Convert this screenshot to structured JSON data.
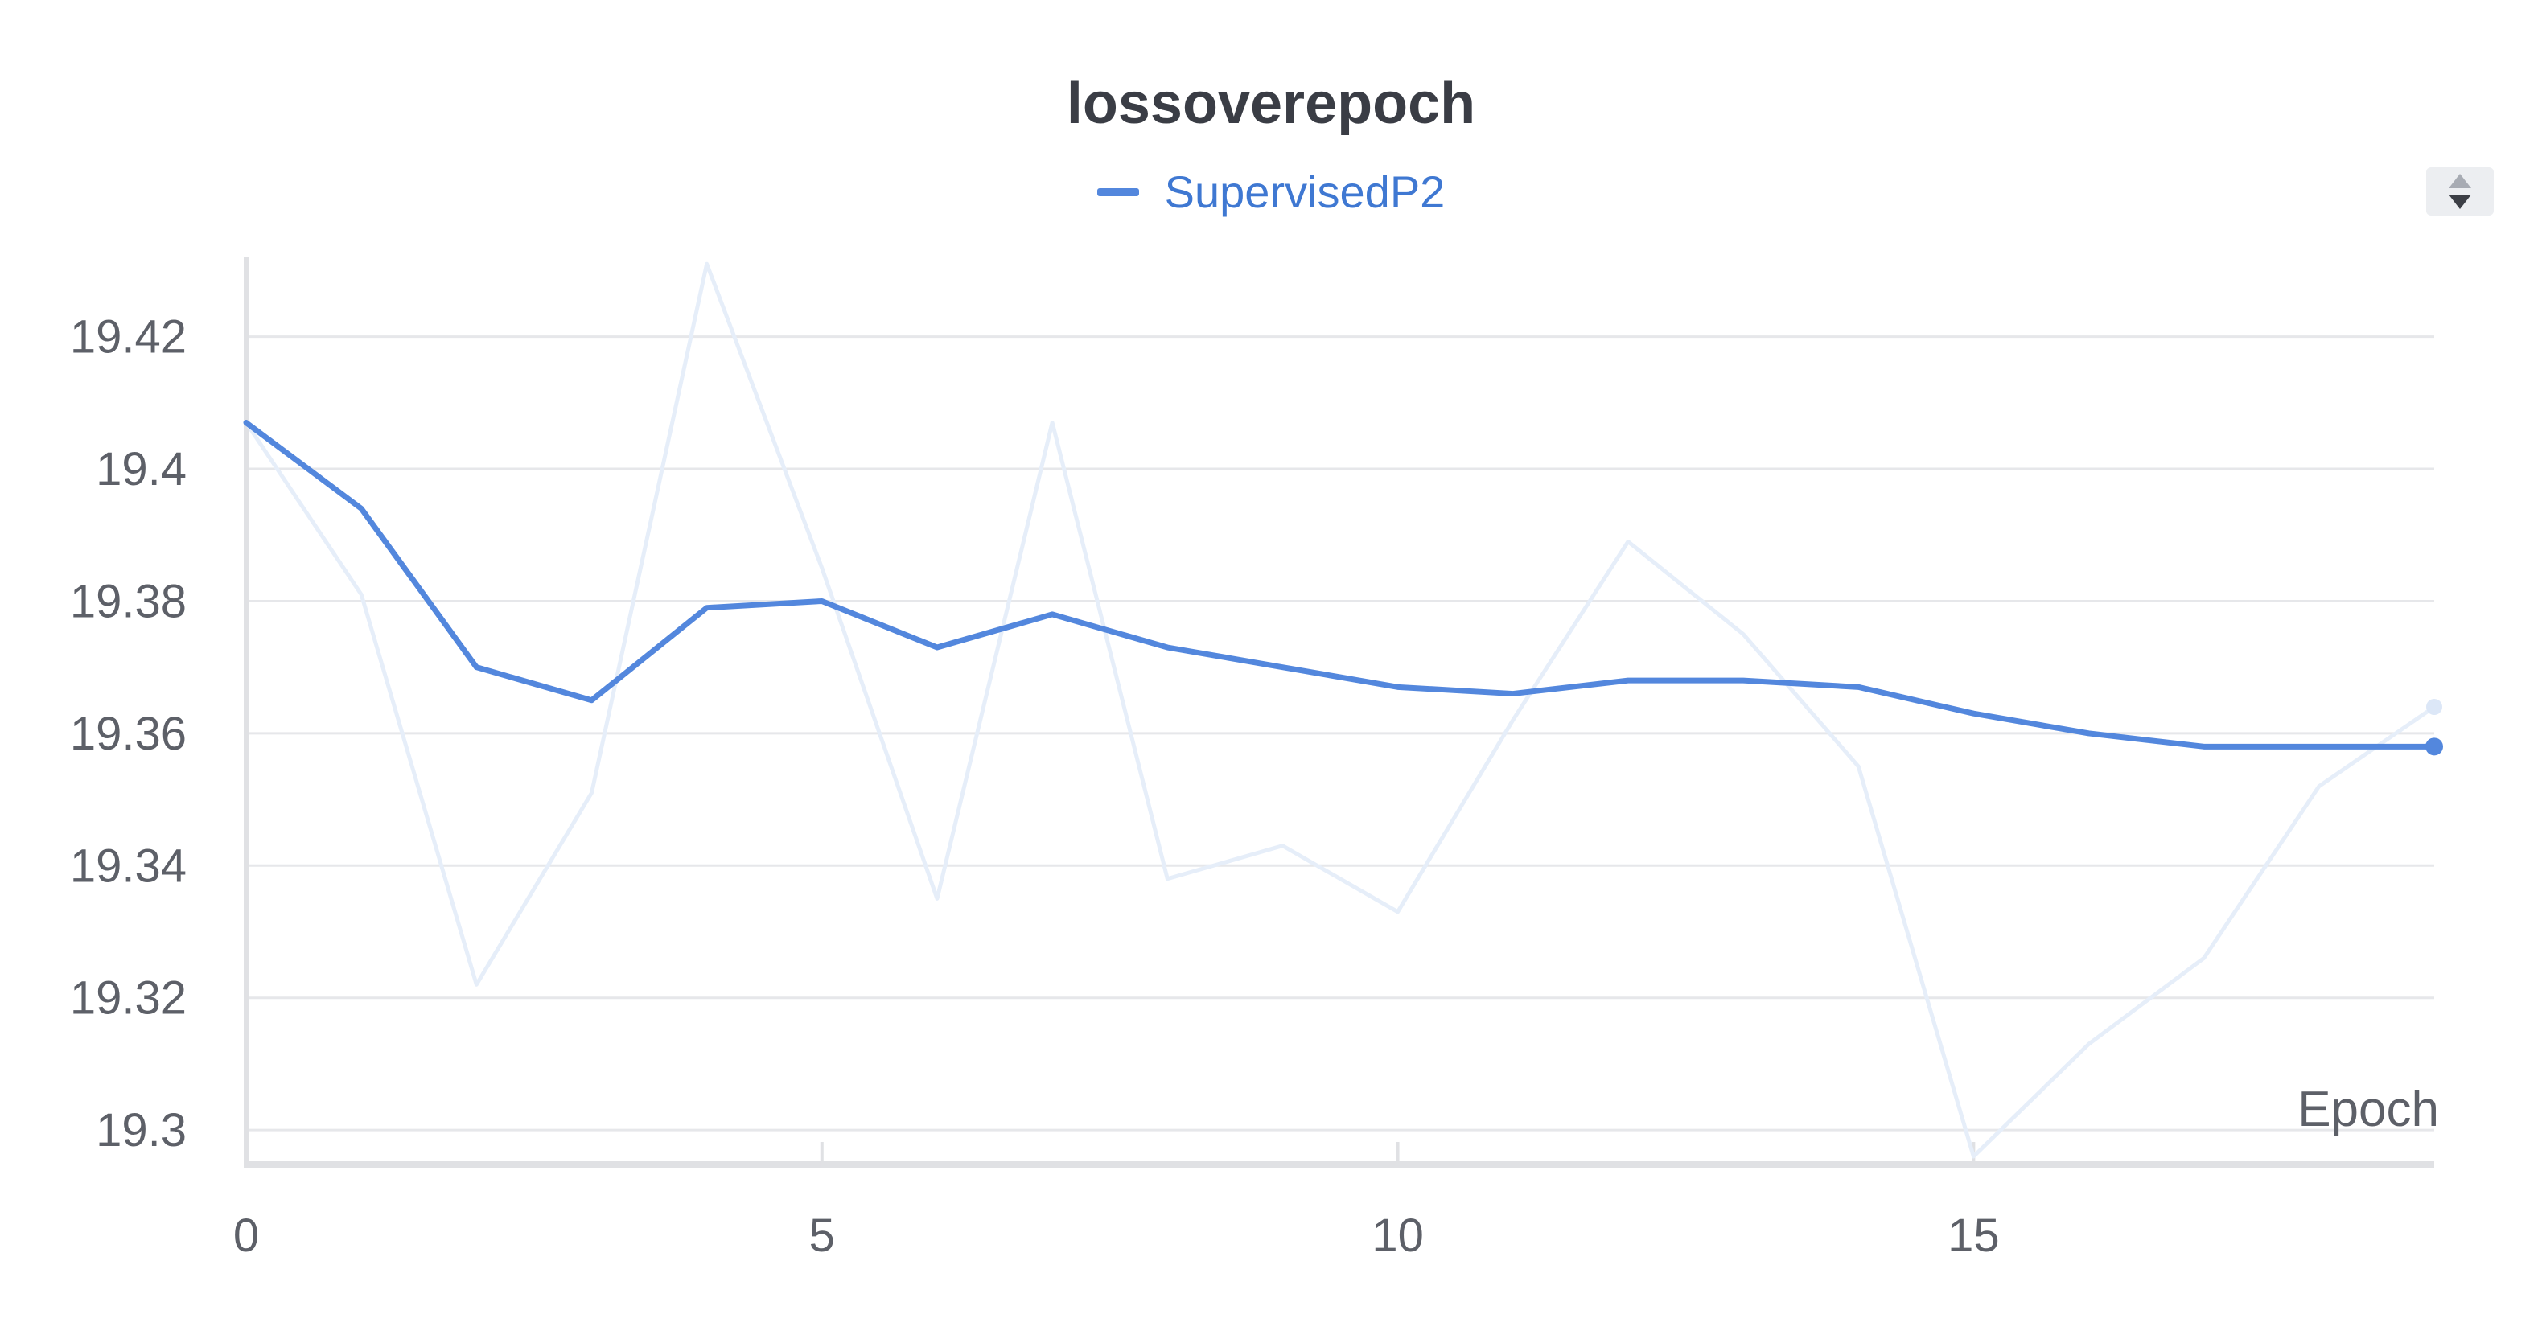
{
  "chart_data": {
    "type": "line",
    "title": "lossoverepoch",
    "xlabel": "Epoch",
    "ylabel": "",
    "xlim": [
      0,
      19
    ],
    "ylim": [
      19.296,
      19.432
    ],
    "x_ticks": [
      "0",
      "5",
      "10",
      "15"
    ],
    "y_ticks": [
      "19.3",
      "19.32",
      "19.34",
      "19.36",
      "19.38",
      "19.4",
      "19.42"
    ],
    "grid": true,
    "legend_position": "top-center",
    "series": [
      {
        "name": "SupervisedP2",
        "color": "#5387dd",
        "x": [
          0,
          1,
          2,
          3,
          4,
          5,
          6,
          7,
          8,
          9,
          10,
          11,
          12,
          13,
          14,
          15,
          16,
          17,
          18,
          19
        ],
        "values": [
          19.407,
          19.394,
          19.37,
          19.365,
          19.379,
          19.38,
          19.373,
          19.378,
          19.373,
          19.37,
          19.367,
          19.366,
          19.368,
          19.368,
          19.367,
          19.363,
          19.36,
          19.358,
          19.358,
          19.358
        ]
      },
      {
        "name": "",
        "color": "#e6eef9",
        "x": [
          0,
          1,
          2,
          3,
          4,
          5,
          6,
          7,
          8,
          9,
          10,
          11,
          12,
          13,
          14,
          15,
          16,
          17,
          18,
          19
        ],
        "values": [
          19.407,
          19.381,
          19.322,
          19.351,
          19.431,
          19.385,
          19.335,
          19.407,
          19.338,
          19.343,
          19.333,
          19.362,
          19.389,
          19.375,
          19.355,
          19.296,
          19.313,
          19.326,
          19.352,
          19.364
        ]
      }
    ]
  },
  "controls": {
    "sort_icon": "sort-up-down-icon"
  }
}
